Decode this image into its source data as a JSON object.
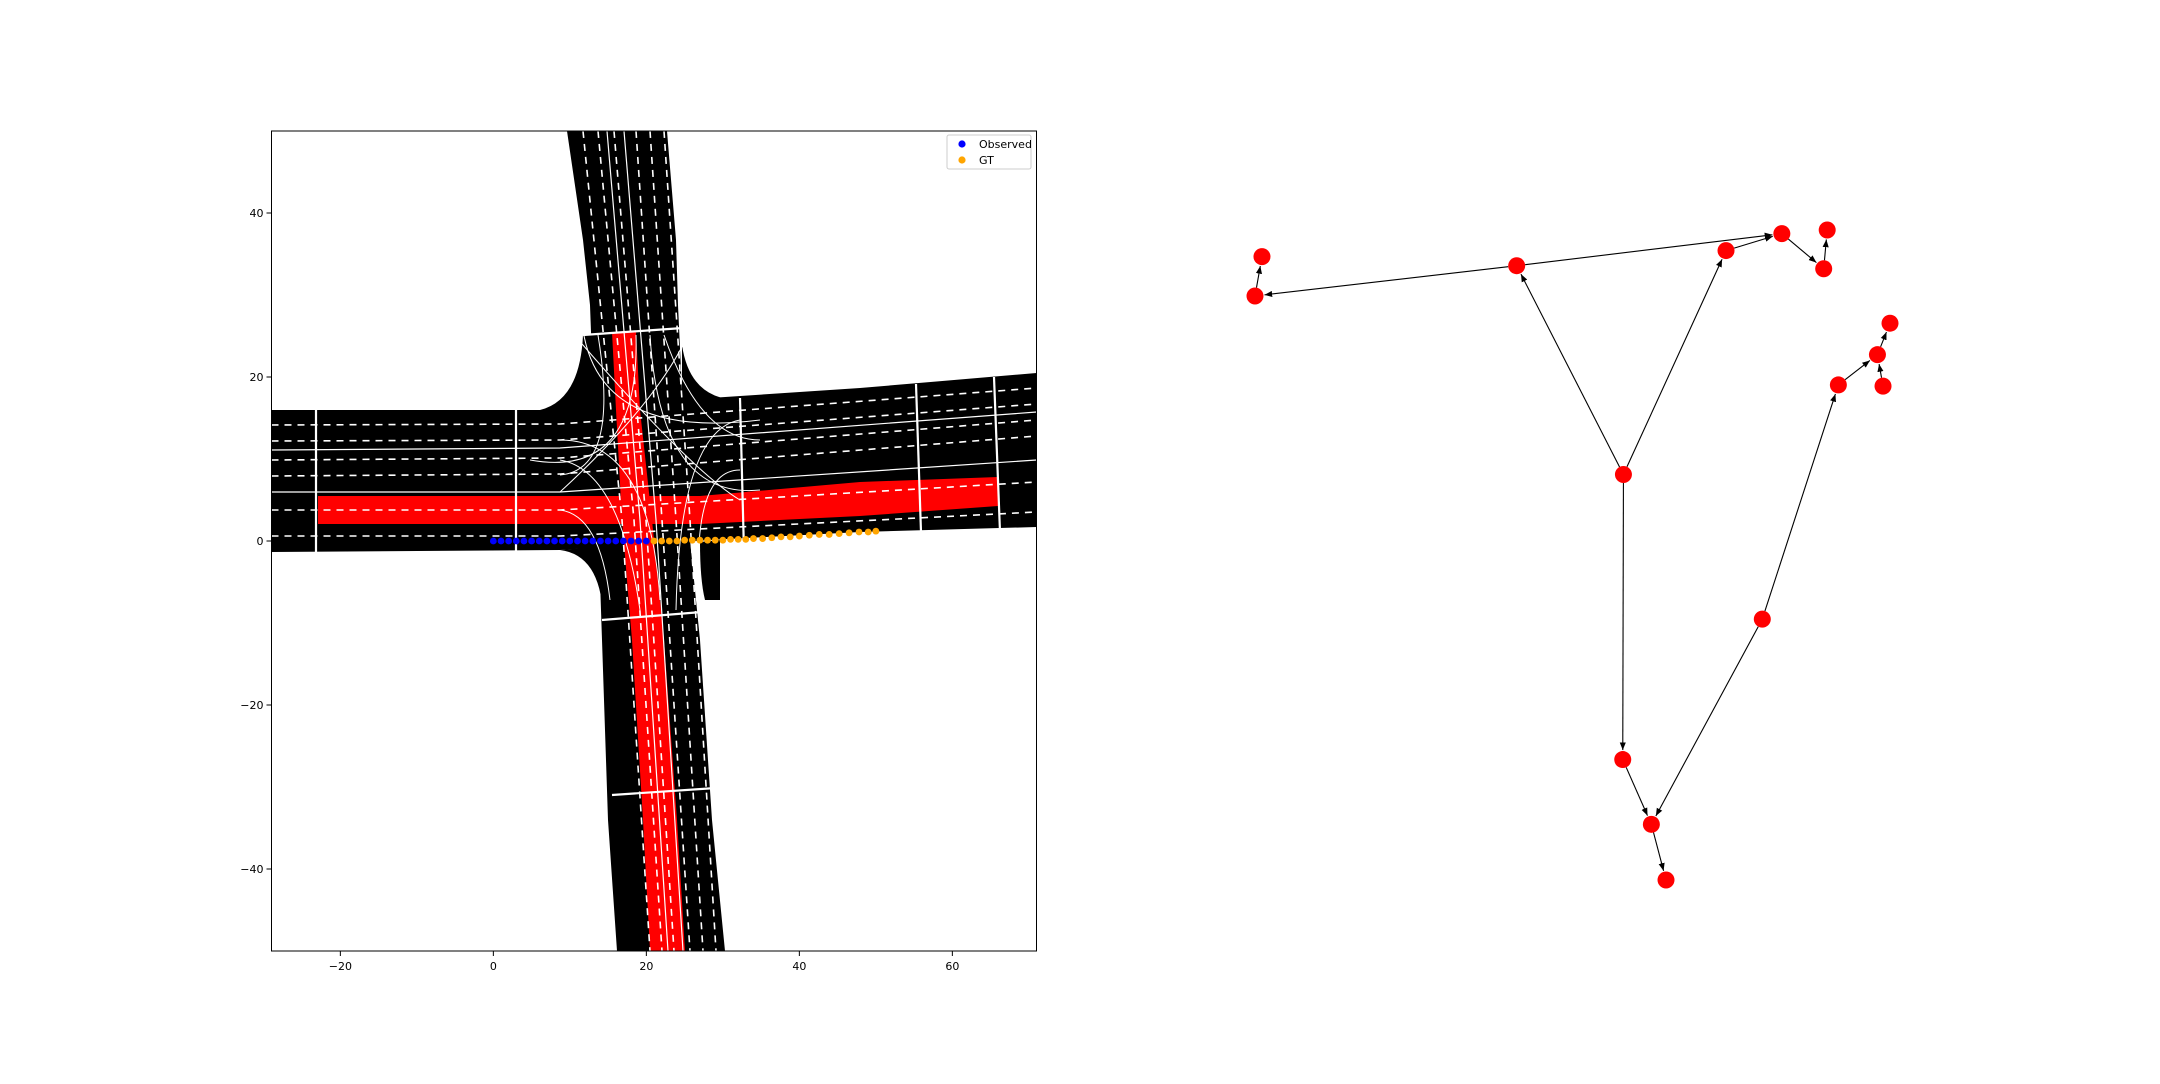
{
  "colors": {
    "road": "#000000",
    "highlight": "#ff0000",
    "lane_line": "#ffffff",
    "observed": "#0000ff",
    "gt": "#ffa500",
    "node": "#ff0000",
    "edge": "#000000"
  },
  "chart_data": [
    {
      "type": "scatter",
      "title": "",
      "xlabel": "",
      "ylabel": "",
      "xlim": [
        -29,
        71
      ],
      "ylim": [
        -50,
        50
      ],
      "xticks": [
        -20,
        0,
        20,
        40,
        60
      ],
      "yticks": [
        -40,
        -20,
        0,
        20,
        40
      ],
      "xtick_labels": [
        "−20",
        "0",
        "20",
        "40",
        "60"
      ],
      "ytick_labels": [
        "−40",
        "−20",
        "0",
        "20",
        "40"
      ],
      "grid": false,
      "legend": "top-right",
      "background": "road map of a four-way intersection with lane markings; one east-west lane and one north-south lane highlighted red",
      "series": [
        {
          "name": "Observed",
          "color": "#0000ff",
          "x": [
            0,
            1.0,
            2.0,
            3.0,
            4.0,
            5.0,
            6.0,
            7.0,
            8.0,
            9.0,
            10.0,
            11.0,
            12.0,
            13.0,
            14.0,
            15.0,
            16.0,
            17.0,
            18.0,
            19.0,
            20.0
          ],
          "y": [
            0,
            0,
            0,
            0,
            0,
            0,
            0,
            0,
            0,
            0,
            0,
            0,
            0,
            0,
            0,
            0,
            0,
            0,
            0,
            0,
            0
          ]
        },
        {
          "name": "GT",
          "color": "#ffa500",
          "x": [
            21,
            22,
            23,
            24,
            25,
            26,
            27,
            28,
            29,
            30,
            31,
            32,
            33,
            34,
            35.2,
            36.4,
            37.6,
            38.8,
            40,
            41.3,
            42.6,
            43.9,
            45.2,
            46.5,
            47.8,
            49,
            50
          ],
          "y": [
            0,
            0,
            0,
            0,
            0.1,
            0.1,
            0.1,
            0.1,
            0.1,
            0.1,
            0.2,
            0.2,
            0.2,
            0.3,
            0.3,
            0.4,
            0.5,
            0.5,
            0.6,
            0.7,
            0.8,
            0.8,
            0.9,
            1.0,
            1.1,
            1.1,
            1.2
          ]
        }
      ]
    },
    {
      "type": "diagram",
      "title": "",
      "nodes": [
        {
          "id": "n0",
          "x": 0.01,
          "y": 0.83
        },
        {
          "id": "n1",
          "x": 0.0,
          "y": 0.765
        },
        {
          "id": "n2",
          "x": 0.375,
          "y": 0.815
        },
        {
          "id": "n3",
          "x": 0.675,
          "y": 0.84
        },
        {
          "id": "n4",
          "x": 0.755,
          "y": 0.868
        },
        {
          "id": "n5",
          "x": 0.815,
          "y": 0.81
        },
        {
          "id": "n6",
          "x": 0.82,
          "y": 0.874
        },
        {
          "id": "n7",
          "x": 0.528,
          "y": 0.47
        },
        {
          "id": "n8",
          "x": 0.91,
          "y": 0.72
        },
        {
          "id": "n9",
          "x": 0.892,
          "y": 0.668
        },
        {
          "id": "n10",
          "x": 0.836,
          "y": 0.618
        },
        {
          "id": "n11",
          "x": 0.9,
          "y": 0.616
        },
        {
          "id": "n12",
          "x": 0.727,
          "y": 0.231
        },
        {
          "id": "n13",
          "x": 0.527,
          "y": -0.001
        },
        {
          "id": "n14",
          "x": 0.568,
          "y": -0.108
        },
        {
          "id": "n15",
          "x": 0.589,
          "y": -0.2
        }
      ],
      "edges": [
        [
          "n2",
          "n1"
        ],
        [
          "n1",
          "n0"
        ],
        [
          "n2",
          "n4"
        ],
        [
          "n4",
          "n5"
        ],
        [
          "n5",
          "n6"
        ],
        [
          "n7",
          "n2"
        ],
        [
          "n7",
          "n3"
        ],
        [
          "n3",
          "n4"
        ],
        [
          "n7",
          "n13"
        ],
        [
          "n13",
          "n14"
        ],
        [
          "n14",
          "n15"
        ],
        [
          "n12",
          "n14"
        ],
        [
          "n12",
          "n10"
        ],
        [
          "n10",
          "n9"
        ],
        [
          "n9",
          "n8"
        ],
        [
          "n11",
          "n9"
        ]
      ]
    }
  ]
}
